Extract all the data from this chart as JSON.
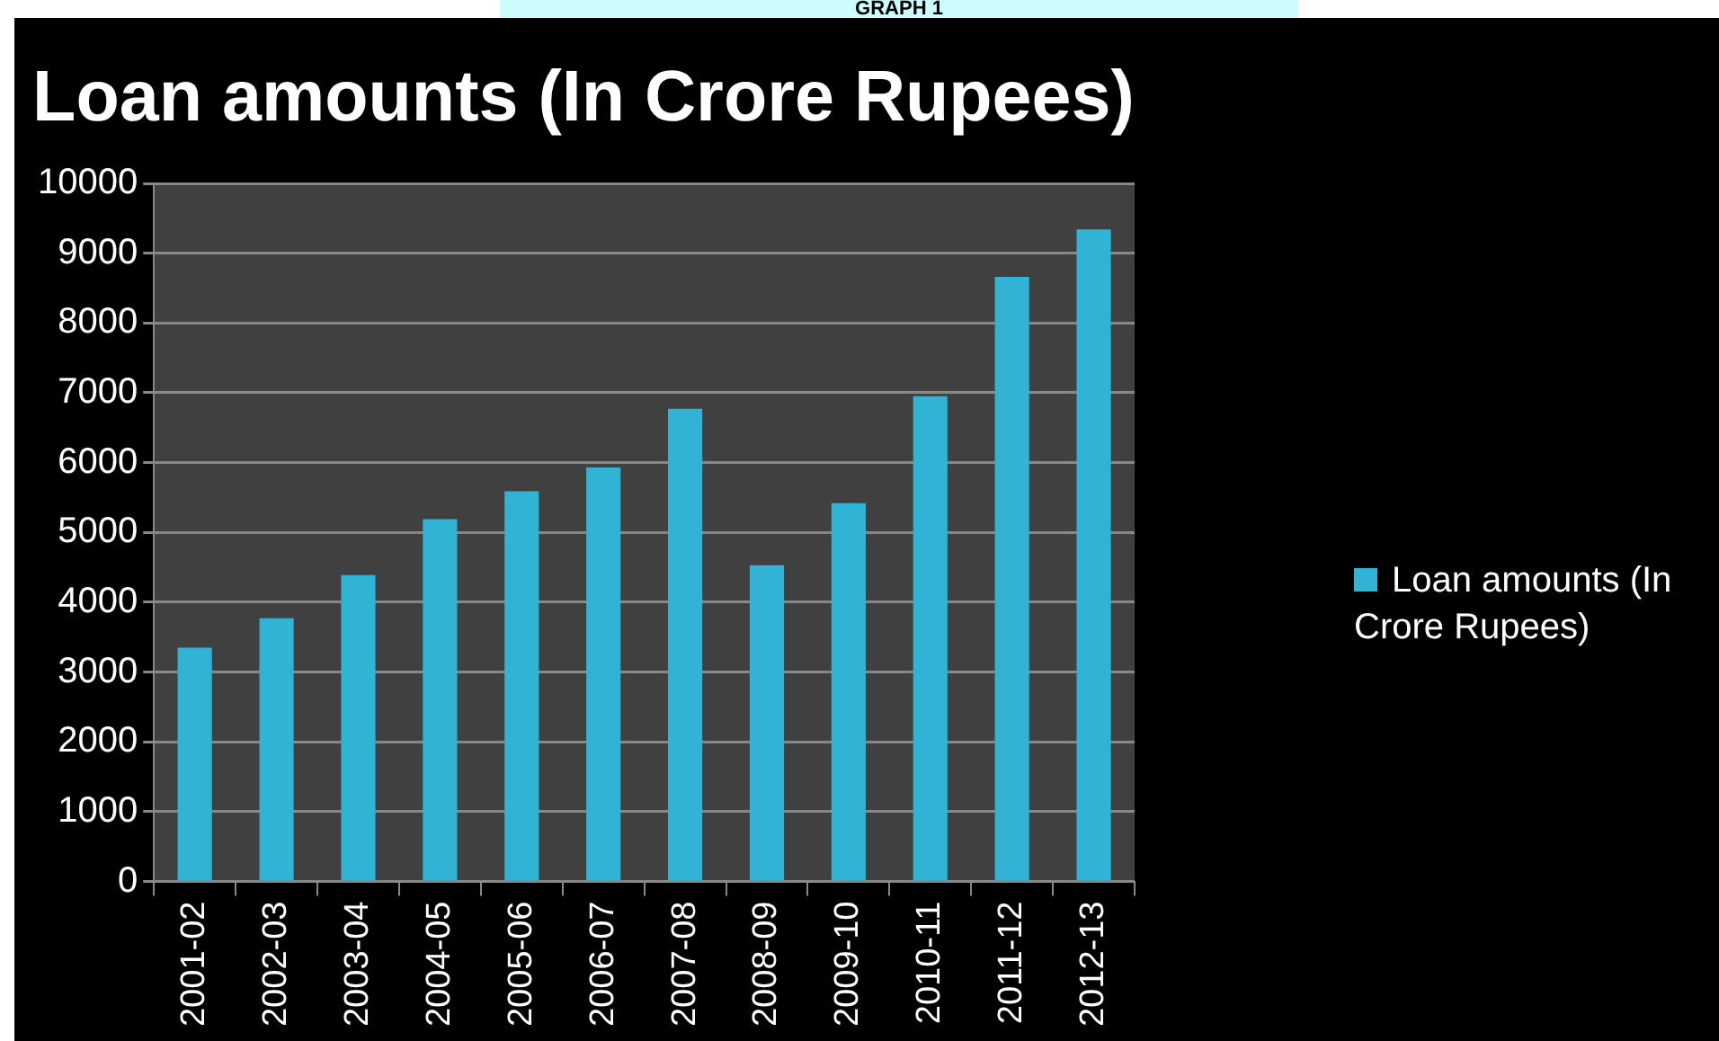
{
  "chart_data": {
    "type": "bar",
    "title": "Loan amounts (In Crore Rupees)",
    "annotations": [
      "GRAPH 1"
    ],
    "categories": [
      "2001-02",
      "2002-03",
      "2003-04",
      "2004-05",
      "2005-06",
      "2006-07",
      "2007-08",
      "2008-09",
      "2009-10",
      "2010-11",
      "2011-12",
      "2012-13"
    ],
    "series": [
      {
        "name": "Loan amounts (In Crore Rupees)",
        "color": "#31b3d6",
        "values": [
          3350,
          3770,
          4390,
          5190,
          5590,
          5930,
          6770,
          4530,
          5420,
          6950,
          8660,
          9340
        ]
      }
    ],
    "ylim": [
      0,
      10000
    ],
    "yticks": [
      0,
      1000,
      2000,
      3000,
      4000,
      5000,
      6000,
      7000,
      8000,
      9000,
      10000
    ],
    "grid": "y",
    "legend": "right"
  }
}
